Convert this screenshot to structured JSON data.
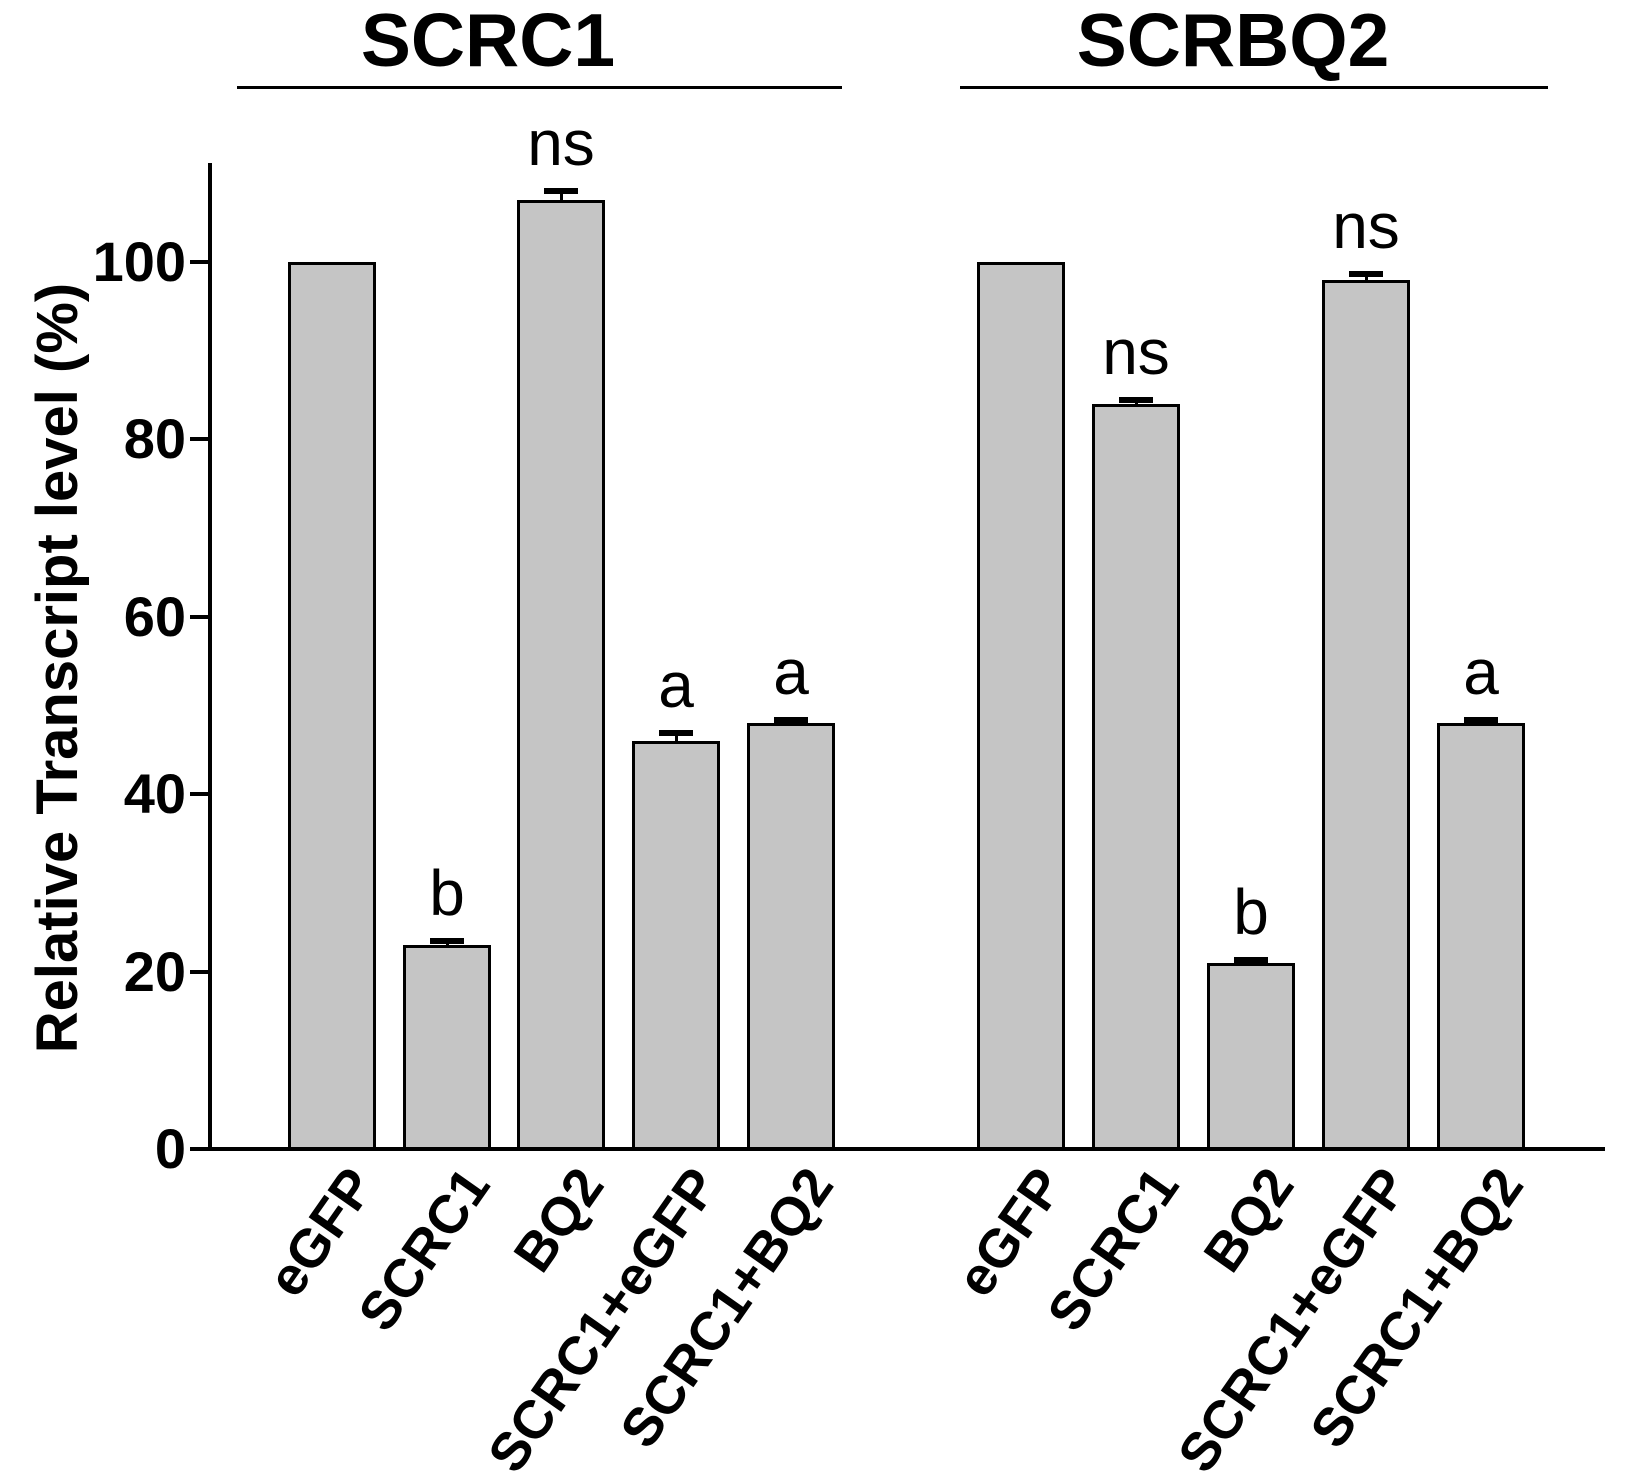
{
  "figure": {
    "background": "#ffffff",
    "text_color": "#000000"
  },
  "chart_data": {
    "type": "bar",
    "title": "",
    "ylabel": "Relative Transcript level (%)",
    "xlabel": "",
    "ylim": [
      0,
      111
    ],
    "yticks": [
      0,
      20,
      40,
      60,
      80,
      100
    ],
    "grid": false,
    "legend_position": "none",
    "bar_color": "#c5c5c5",
    "bar_border_color": "#000000",
    "axis_color": "#000000",
    "categories": [
      "eGFP",
      "SCRC1",
      "BQ2",
      "SCRC1+eGFP",
      "SCRC1+BQ2"
    ],
    "groups": [
      {
        "title": "SCRC1",
        "values": [
          100,
          23,
          107,
          46,
          48
        ],
        "errors": [
          0,
          0.5,
          1.0,
          0.9,
          0.4
        ],
        "sig_labels": [
          "",
          "b",
          "ns",
          "a",
          "a"
        ]
      },
      {
        "title": "SCRBQ2",
        "values": [
          100,
          84,
          21,
          98,
          48
        ],
        "errors": [
          0,
          0.4,
          0.3,
          0.6,
          0.4
        ],
        "sig_labels": [
          "",
          "ns",
          "b",
          "ns",
          "a"
        ]
      }
    ]
  }
}
